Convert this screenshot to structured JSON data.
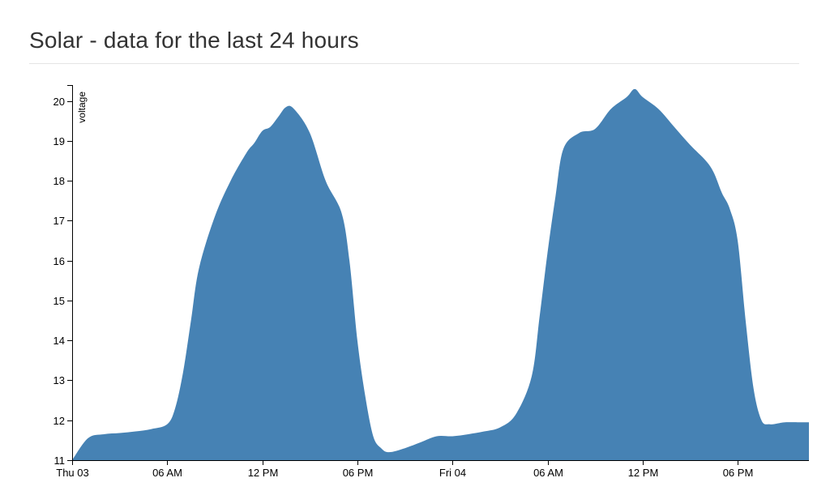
{
  "header": {
    "title": "Solar - data for the last 24 hours"
  },
  "chart_data": {
    "type": "area",
    "title": "Solar - data for the last 24 hours",
    "xlabel": "",
    "ylabel": "voltage",
    "x_unit": "hours since Thu 03 00:00",
    "x_range": [
      0,
      47
    ],
    "ylim": [
      11,
      20.4
    ],
    "y_ticks": [
      11,
      12,
      13,
      14,
      15,
      16,
      17,
      18,
      19,
      20
    ],
    "x_ticks": [
      {
        "x": 0,
        "label": "Thu 03"
      },
      {
        "x": 6,
        "label": "06 AM"
      },
      {
        "x": 12,
        "label": "12 PM"
      },
      {
        "x": 18,
        "label": "06 PM"
      },
      {
        "x": 24,
        "label": "Fri 04"
      },
      {
        "x": 30,
        "label": "06 AM"
      },
      {
        "x": 36,
        "label": "12 PM"
      },
      {
        "x": 42,
        "label": "06 PM"
      }
    ],
    "grid": false,
    "fill_color": "#4682b4",
    "series": [
      {
        "name": "voltage",
        "x": [
          0,
          1,
          2,
          3,
          4,
          5,
          6,
          6.5,
          7,
          7.5,
          8,
          9,
          10,
          11,
          11.5,
          12,
          12.5,
          13,
          13.5,
          14,
          15,
          16,
          17,
          17.5,
          18,
          18.5,
          19,
          19.5,
          20,
          21,
          22,
          23,
          24,
          25,
          26,
          27,
          28,
          29,
          29.5,
          30,
          30.5,
          31,
          32,
          33,
          34,
          35,
          35.5,
          36,
          37,
          38,
          39,
          40,
          40.5,
          41,
          41.5,
          42,
          42.5,
          43,
          43.5,
          44,
          44.5,
          45,
          46,
          46.5,
          47
        ],
        "y": [
          11.0,
          11.55,
          11.65,
          11.68,
          11.72,
          11.78,
          11.9,
          12.3,
          13.2,
          14.5,
          15.8,
          17.1,
          18.0,
          18.7,
          18.95,
          19.25,
          19.35,
          19.6,
          19.85,
          19.8,
          19.2,
          18.0,
          17.2,
          16.0,
          14.0,
          12.6,
          11.6,
          11.3,
          11.2,
          11.3,
          11.45,
          11.6,
          11.6,
          11.65,
          11.72,
          11.82,
          12.15,
          13.1,
          14.6,
          16.2,
          17.6,
          18.8,
          19.2,
          19.3,
          19.8,
          20.1,
          20.3,
          20.1,
          19.8,
          19.35,
          18.9,
          18.5,
          18.2,
          17.7,
          17.3,
          16.5,
          14.5,
          12.8,
          12.0,
          11.9,
          11.92,
          11.95,
          11.95,
          11.95,
          11.95
        ]
      }
    ]
  }
}
